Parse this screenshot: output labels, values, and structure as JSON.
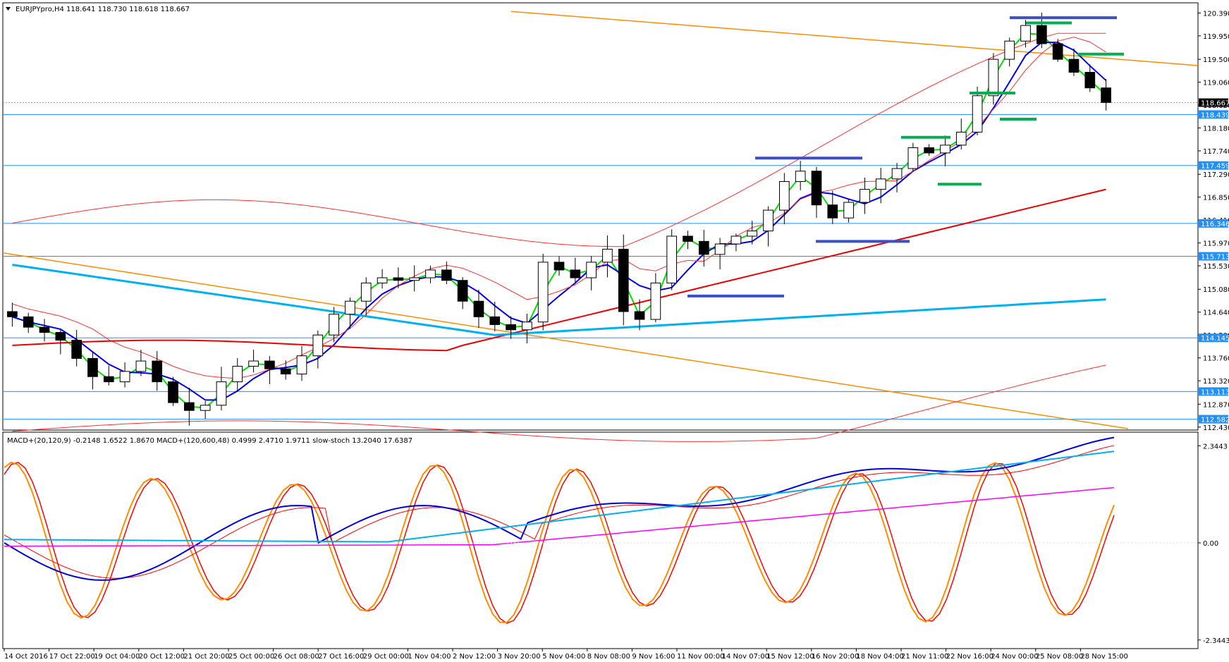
{
  "window": {
    "symbol_header": "EURJPYpro,H4  118.641 118.730 118.618 118.667",
    "indicator_header": "MACD+(20,120,9) -0.2148 1.6522 1.8670  MACD+(120,600,48) 0.4999 2.4710 1.9711  slow-stoch 13.2040 17.6387"
  },
  "price_axis": {
    "ticks": [
      "120.390",
      "119.950",
      "119.500",
      "119.060",
      "118.620",
      "118.180",
      "117.740",
      "117.290",
      "116.850",
      "116.410",
      "115.970",
      "115.530",
      "115.080",
      "114.640",
      "114.200",
      "113.760",
      "113.320",
      "112.870",
      "112.430"
    ],
    "current_price": "118.667",
    "levels": [
      "118.439",
      "117.459",
      "116.346",
      "115.713",
      "114.145",
      "113.113",
      "112.582"
    ]
  },
  "indicator_axis": {
    "ticks": [
      "2.3443",
      "0.00",
      "-2.3443"
    ]
  },
  "time_axis": {
    "labels": [
      "14 Oct 2016",
      "17 Oct 22:00",
      "19 Oct 04:00",
      "20 Oct 12:00",
      "21 Oct 20:00",
      "25 Oct 00:00",
      "26 Oct 08:00",
      "27 Oct 16:00",
      "29 Oct 00:00",
      "1 Nov 04:00",
      "2 Nov 12:00",
      "3 Nov 20:00",
      "5 Nov 04:00",
      "8 Nov 08:00",
      "9 Nov 16:00",
      "11 Nov 00:00",
      "14 Nov 07:00",
      "15 Nov 12:00",
      "16 Nov 20:00",
      "18 Nov 04:00",
      "21 Nov 11:00",
      "22 Nov 16:00",
      "24 Nov 00:00",
      "25 Nov 08:00",
      "28 Nov 15:00"
    ]
  },
  "colors": {
    "background": "#ffffff",
    "candle": "#000000",
    "level_line": "#1e90ff",
    "level_tag": "#1e90ff",
    "trendline": "#ff8c00",
    "ma_green": "#00e000",
    "ma_blue": "#0000ee",
    "ma_red": "#ee0000",
    "ma_thin_red": "#ff3030",
    "ma_cyan": "#00b0f0",
    "support_marker": "#3b4fc8",
    "resistance_marker": "#00b050",
    "stoch_main": "#ff8c00",
    "stoch_signal": "#ff0000",
    "macd_fast": "#0000dd",
    "macd_signal": "#00b0f0",
    "macd_slow": "#ff00ff"
  },
  "chart_data": {
    "type": "candlestick",
    "symbol": "EURJPYpro",
    "timeframe": "H4",
    "ylim": [
      112.4,
      120.45
    ],
    "close_path": [
      114.55,
      114.35,
      114.25,
      114.1,
      113.75,
      113.4,
      113.3,
      113.5,
      113.7,
      113.3,
      112.9,
      112.75,
      112.85,
      113.3,
      113.6,
      113.7,
      113.55,
      113.45,
      113.8,
      114.2,
      114.6,
      114.85,
      115.2,
      115.3,
      115.25,
      115.3,
      115.45,
      115.25,
      114.85,
      114.55,
      114.4,
      114.3,
      114.45,
      115.6,
      115.45,
      115.3,
      115.6,
      115.85,
      114.65,
      114.5,
      115.2,
      116.1,
      116.0,
      115.75,
      115.95,
      116.1,
      116.2,
      116.6,
      117.15,
      117.35,
      116.7,
      116.45,
      116.75,
      117.0,
      117.2,
      117.4,
      117.8,
      117.7,
      117.85,
      118.1,
      118.8,
      119.5,
      119.85,
      120.15,
      119.8,
      119.5,
      119.25,
      118.95,
      118.67
    ],
    "support_markers": [
      "114.95",
      "116.00",
      "117.60"
    ],
    "resistance_markers": [
      "120.30",
      "120.20",
      "119.60",
      "118.85",
      "118.35",
      "118.00",
      "117.10"
    ]
  }
}
